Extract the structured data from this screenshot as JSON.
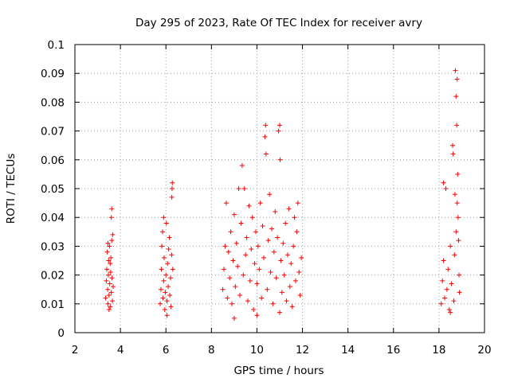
{
  "chart_data": {
    "type": "scatter",
    "title": "Day 295 of 2023, Rate Of TEC Index for receiver avry",
    "xlabel": "GPS time / hours",
    "ylabel": "ROTI / TECUs",
    "xlim": [
      2,
      20
    ],
    "ylim": [
      0,
      0.1
    ],
    "x_ticks": [
      "2",
      "4",
      "6",
      "8",
      "10",
      "12",
      "14",
      "16",
      "18",
      "20"
    ],
    "y_ticks": [
      "0",
      "0.01",
      "0.02",
      "0.03",
      "0.04",
      "0.05",
      "0.06",
      "0.07",
      "0.08",
      "0.09",
      "0.1"
    ],
    "grid": true,
    "marker": "+",
    "marker_color": "#ff0000",
    "series": [
      {
        "points": [
          [
            3.35,
            0.012
          ],
          [
            3.38,
            0.018
          ],
          [
            3.4,
            0.022
          ],
          [
            3.42,
            0.028
          ],
          [
            3.44,
            0.015
          ],
          [
            3.45,
            0.01
          ],
          [
            3.47,
            0.02
          ],
          [
            3.48,
            0.025
          ],
          [
            3.5,
            0.013
          ],
          [
            3.52,
            0.03
          ],
          [
            3.53,
            0.017
          ],
          [
            3.55,
            0.009
          ],
          [
            3.57,
            0.021
          ],
          [
            3.58,
            0.026
          ],
          [
            3.6,
            0.014
          ],
          [
            3.62,
            0.032
          ],
          [
            3.63,
            0.019
          ],
          [
            3.65,
            0.011
          ],
          [
            3.66,
            0.034
          ],
          [
            3.68,
            0.016
          ],
          [
            3.6,
            0.04
          ],
          [
            3.62,
            0.043
          ],
          [
            3.5,
            0.008
          ],
          [
            3.55,
            0.024
          ],
          [
            3.45,
            0.031
          ],
          [
            5.75,
            0.01
          ],
          [
            5.78,
            0.015
          ],
          [
            5.8,
            0.022
          ],
          [
            5.82,
            0.03
          ],
          [
            5.85,
            0.035
          ],
          [
            5.87,
            0.012
          ],
          [
            5.9,
            0.018
          ],
          [
            5.92,
            0.026
          ],
          [
            5.95,
            0.008
          ],
          [
            5.97,
            0.014
          ],
          [
            6.0,
            0.02
          ],
          [
            6.02,
            0.038
          ],
          [
            6.05,
            0.011
          ],
          [
            6.07,
            0.024
          ],
          [
            6.1,
            0.016
          ],
          [
            6.12,
            0.029
          ],
          [
            6.15,
            0.033
          ],
          [
            6.17,
            0.013
          ],
          [
            6.2,
            0.019
          ],
          [
            6.22,
            0.009
          ],
          [
            6.25,
            0.027
          ],
          [
            6.27,
            0.05
          ],
          [
            6.28,
            0.052
          ],
          [
            6.26,
            0.047
          ],
          [
            6.3,
            0.022
          ],
          [
            5.9,
            0.04
          ],
          [
            6.05,
            0.006
          ],
          [
            8.5,
            0.015
          ],
          [
            8.55,
            0.022
          ],
          [
            8.6,
            0.03
          ],
          [
            8.65,
            0.045
          ],
          [
            8.7,
            0.012
          ],
          [
            8.75,
            0.028
          ],
          [
            8.8,
            0.019
          ],
          [
            8.85,
            0.035
          ],
          [
            8.9,
            0.01
          ],
          [
            8.95,
            0.025
          ],
          [
            9.0,
            0.041
          ],
          [
            9.05,
            0.016
          ],
          [
            9.1,
            0.031
          ],
          [
            9.15,
            0.023
          ],
          [
            9.2,
            0.05
          ],
          [
            9.25,
            0.013
          ],
          [
            9.3,
            0.038
          ],
          [
            9.35,
            0.058
          ],
          [
            9.4,
            0.02
          ],
          [
            9.45,
            0.05
          ],
          [
            9.5,
            0.027
          ],
          [
            9.55,
            0.033
          ],
          [
            9.6,
            0.011
          ],
          [
            9.65,
            0.044
          ],
          [
            9.7,
            0.018
          ],
          [
            9.75,
            0.029
          ],
          [
            9.8,
            0.04
          ],
          [
            9.85,
            0.008
          ],
          [
            9.9,
            0.024
          ],
          [
            9.95,
            0.035
          ],
          [
            10.0,
            0.017
          ],
          [
            10.05,
            0.03
          ],
          [
            10.1,
            0.022
          ],
          [
            10.15,
            0.045
          ],
          [
            10.2,
            0.012
          ],
          [
            10.25,
            0.037
          ],
          [
            10.3,
            0.026
          ],
          [
            10.35,
            0.068
          ],
          [
            10.38,
            0.072
          ],
          [
            10.4,
            0.062
          ],
          [
            10.45,
            0.015
          ],
          [
            10.5,
            0.032
          ],
          [
            10.55,
            0.048
          ],
          [
            10.6,
            0.021
          ],
          [
            10.65,
            0.036
          ],
          [
            10.7,
            0.01
          ],
          [
            10.75,
            0.028
          ],
          [
            10.8,
            0.042
          ],
          [
            10.85,
            0.019
          ],
          [
            10.9,
            0.033
          ],
          [
            10.95,
            0.07
          ],
          [
            11.0,
            0.072
          ],
          [
            11.02,
            0.06
          ],
          [
            11.05,
            0.025
          ],
          [
            11.1,
            0.014
          ],
          [
            11.15,
            0.031
          ],
          [
            11.2,
            0.02
          ],
          [
            11.25,
            0.038
          ],
          [
            11.3,
            0.011
          ],
          [
            11.35,
            0.027
          ],
          [
            11.4,
            0.043
          ],
          [
            11.45,
            0.016
          ],
          [
            11.5,
            0.024
          ],
          [
            11.55,
            0.009
          ],
          [
            11.6,
            0.03
          ],
          [
            11.65,
            0.04
          ],
          [
            11.7,
            0.018
          ],
          [
            11.75,
            0.035
          ],
          [
            11.8,
            0.045
          ],
          [
            11.85,
            0.021
          ],
          [
            11.9,
            0.013
          ],
          [
            11.95,
            0.026
          ],
          [
            9.0,
            0.005
          ],
          [
            10.0,
            0.006
          ],
          [
            11.0,
            0.007
          ],
          [
            18.1,
            0.01
          ],
          [
            18.15,
            0.018
          ],
          [
            18.2,
            0.025
          ],
          [
            18.25,
            0.012
          ],
          [
            18.3,
            0.05
          ],
          [
            18.35,
            0.015
          ],
          [
            18.4,
            0.022
          ],
          [
            18.45,
            0.008
          ],
          [
            18.5,
            0.03
          ],
          [
            18.55,
            0.017
          ],
          [
            18.6,
            0.065
          ],
          [
            18.62,
            0.062
          ],
          [
            18.65,
            0.011
          ],
          [
            18.68,
            0.027
          ],
          [
            18.7,
            0.048
          ],
          [
            18.72,
            0.091
          ],
          [
            18.75,
            0.082
          ],
          [
            18.78,
            0.072
          ],
          [
            18.8,
            0.088
          ],
          [
            18.82,
            0.055
          ],
          [
            18.84,
            0.04
          ],
          [
            18.86,
            0.032
          ],
          [
            18.88,
            0.02
          ],
          [
            18.9,
            0.014
          ],
          [
            18.2,
            0.052
          ],
          [
            18.5,
            0.007
          ],
          [
            18.75,
            0.035
          ],
          [
            18.8,
            0.045
          ]
        ]
      }
    ]
  }
}
